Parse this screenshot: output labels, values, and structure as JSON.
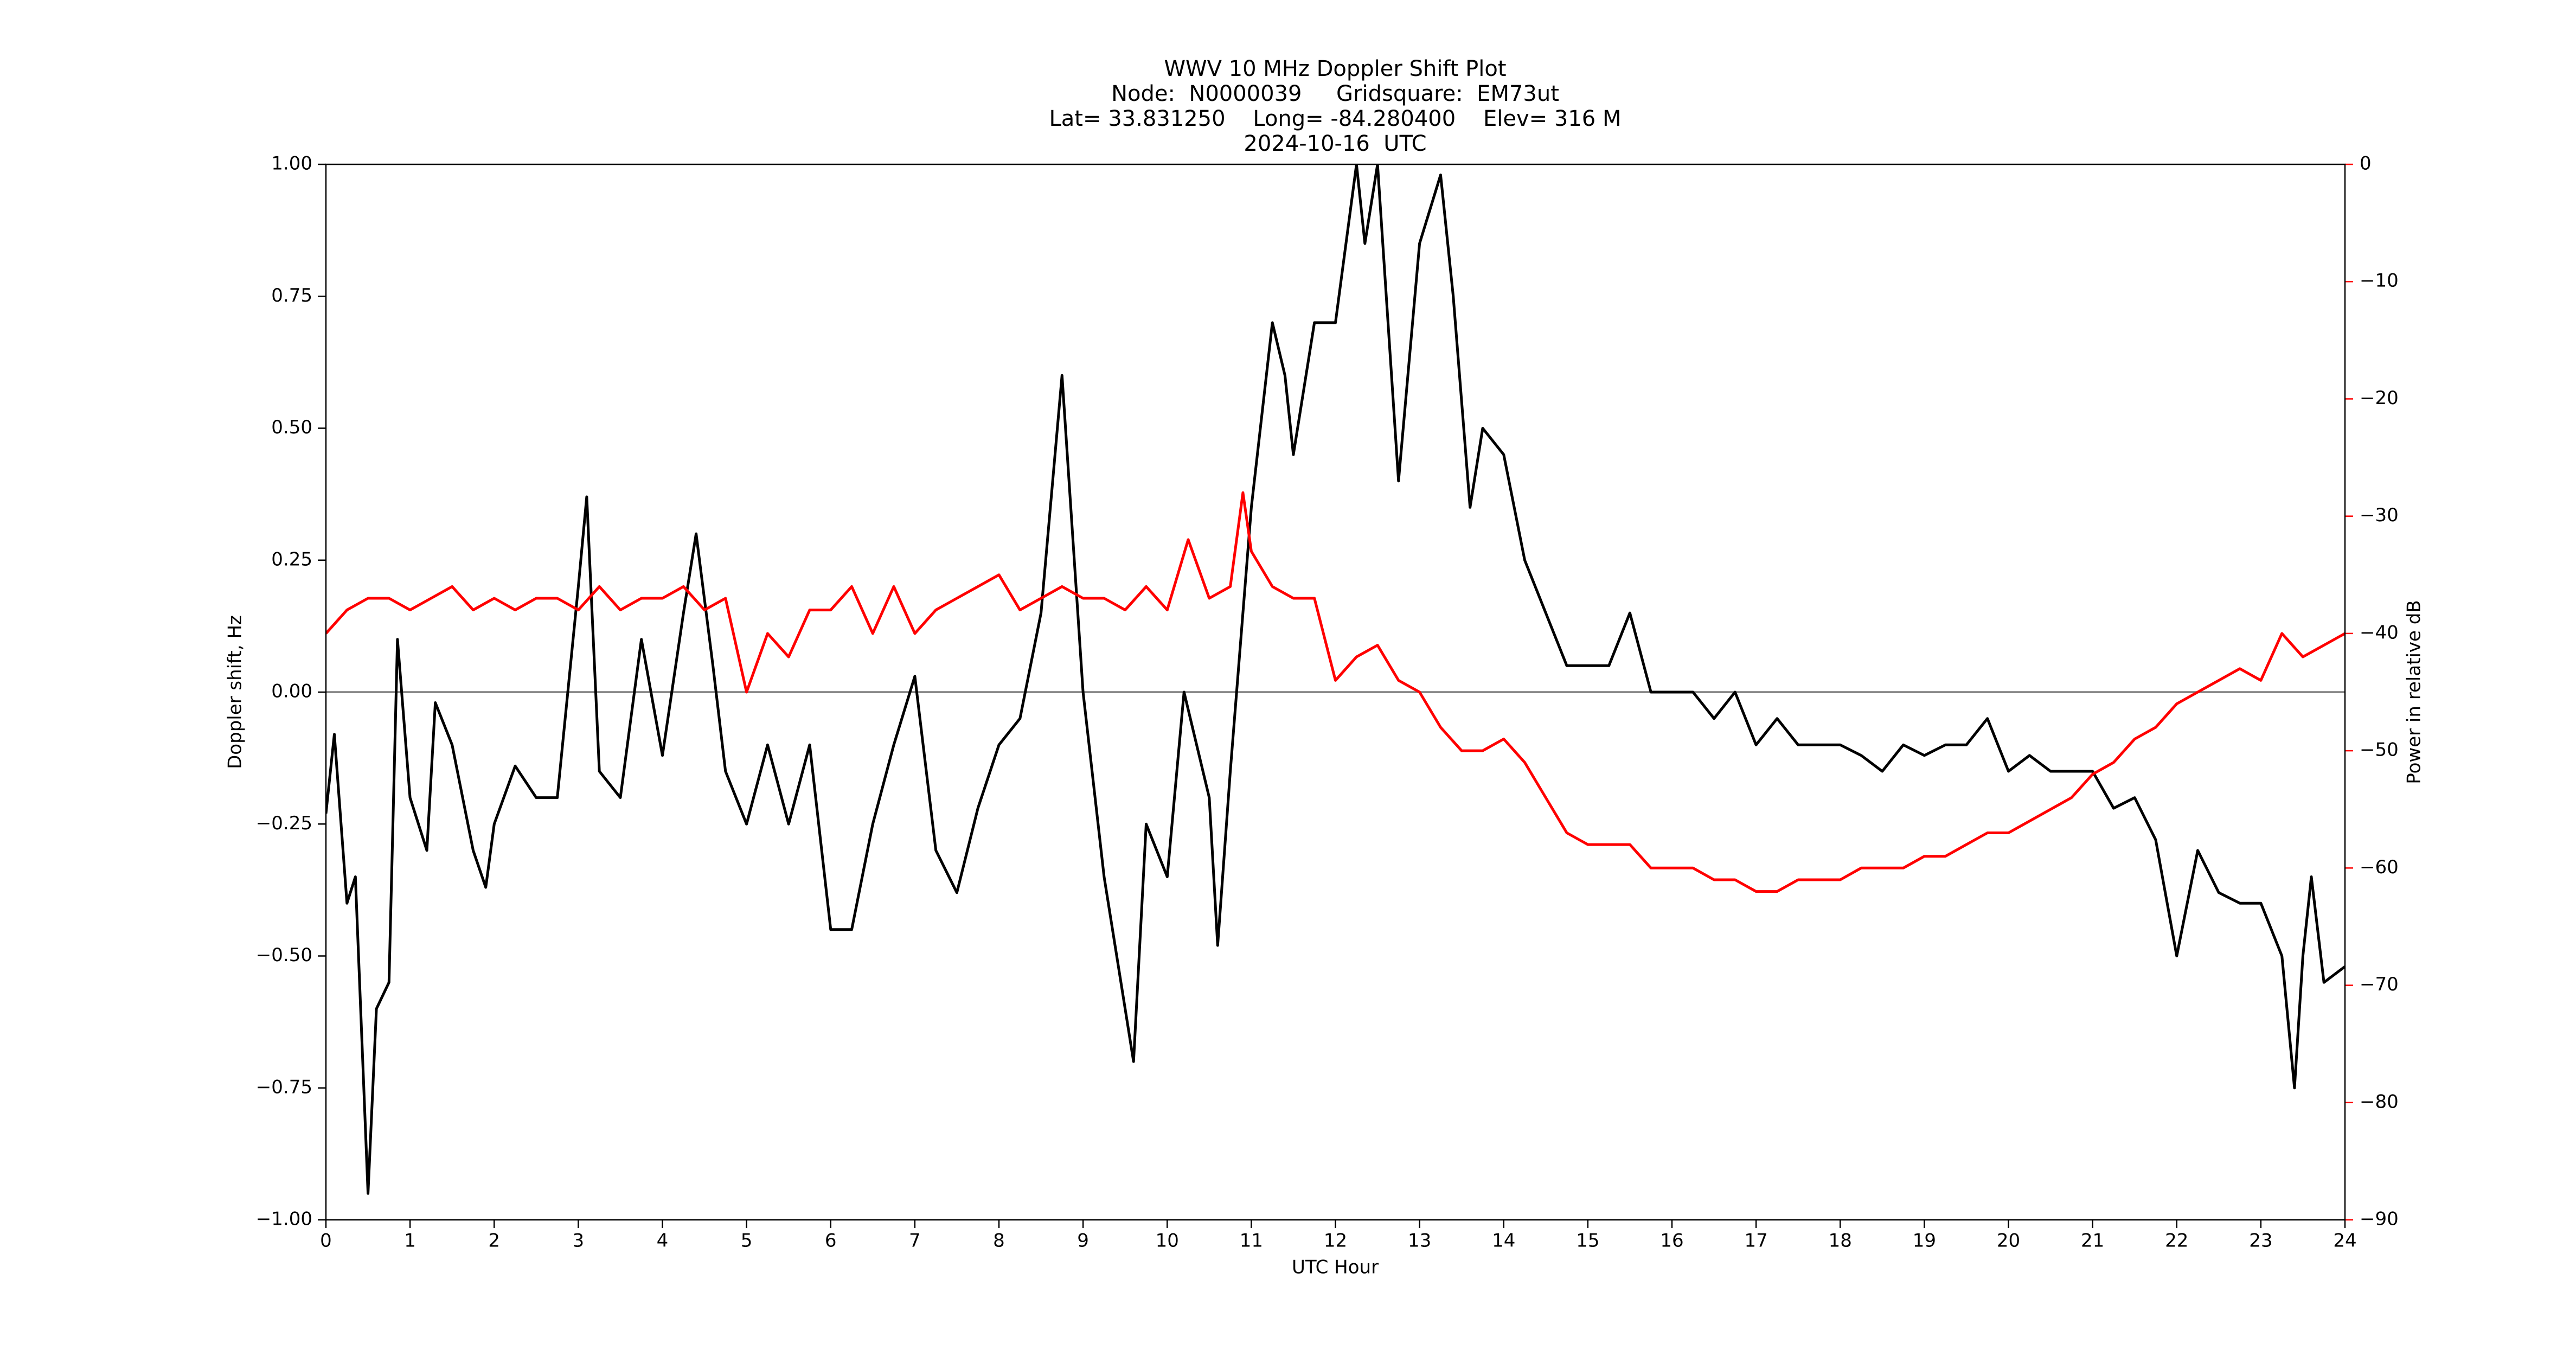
{
  "chart_data": {
    "type": "line",
    "title": [
      "WWV 10 MHz Doppler Shift Plot",
      "Node:  N0000039     Gridsquare:  EM73ut",
      "Lat= 33.831250    Long= -84.280400    Elev= 316 M",
      "2024-10-16  UTC"
    ],
    "xlabel": "UTC Hour",
    "ylabel": "Doppler shift, Hz",
    "y2label": "Power in relative dB",
    "xlim": [
      0,
      24
    ],
    "ylim": [
      -1,
      1
    ],
    "y2lim": [
      -90,
      0
    ],
    "xticks": [
      0,
      1,
      2,
      3,
      4,
      5,
      6,
      7,
      8,
      9,
      10,
      11,
      12,
      13,
      14,
      15,
      16,
      17,
      18,
      19,
      20,
      21,
      22,
      23,
      24
    ],
    "yticks": [
      {
        "value": -1,
        "label": "−1.00"
      },
      {
        "value": -0.75,
        "label": "−0.75"
      },
      {
        "value": -0.5,
        "label": "−0.50"
      },
      {
        "value": -0.25,
        "label": "−0.25"
      },
      {
        "value": 0,
        "label": "0.00"
      },
      {
        "value": 0.25,
        "label": "0.25"
      },
      {
        "value": 0.5,
        "label": "0.50"
      },
      {
        "value": 0.75,
        "label": "0.75"
      },
      {
        "value": 1,
        "label": "1.00"
      }
    ],
    "y2ticks": [
      {
        "value": -90,
        "label": "−90"
      },
      {
        "value": -80,
        "label": "−80"
      },
      {
        "value": -70,
        "label": "−70"
      },
      {
        "value": -60,
        "label": "−60"
      },
      {
        "value": -50,
        "label": "−50"
      },
      {
        "value": -40,
        "label": "−40"
      },
      {
        "value": -30,
        "label": "−30"
      },
      {
        "value": -20,
        "label": "−20"
      },
      {
        "value": -10,
        "label": "−10"
      },
      0
    ],
    "y2color": "#ff0000",
    "hline": 0,
    "hline_color": "#808080",
    "series": [
      {
        "color": "#000000",
        "axis": "y",
        "x": [
          0,
          0.1,
          0.25,
          0.35,
          0.5,
          0.6,
          0.75,
          0.85,
          1.0,
          1.2,
          1.3,
          1.5,
          1.75,
          1.9,
          2.0,
          2.25,
          2.5,
          2.75,
          3.0,
          3.1,
          3.25,
          3.5,
          3.75,
          4.0,
          4.25,
          4.4,
          4.6,
          4.75,
          5.0,
          5.25,
          5.5,
          5.75,
          6.0,
          6.25,
          6.5,
          6.75,
          7.0,
          7.25,
          7.5,
          7.75,
          8.0,
          8.25,
          8.5,
          8.75,
          9.0,
          9.25,
          9.5,
          9.6,
          9.75,
          10.0,
          10.2,
          10.5,
          10.6,
          10.75,
          11.0,
          11.25,
          11.4,
          11.5,
          11.75,
          12.0,
          12.25,
          12.35,
          12.5,
          12.75,
          13.0,
          13.25,
          13.4,
          13.6,
          13.75,
          14.0,
          14.25,
          14.5,
          14.75,
          15.0,
          15.25,
          15.5,
          15.75,
          16.0,
          16.25,
          16.5,
          16.75,
          17.0,
          17.25,
          17.5,
          17.75,
          18.0,
          18.25,
          18.5,
          18.75,
          19.0,
          19.25,
          19.5,
          19.75,
          20.0,
          20.25,
          20.5,
          20.75,
          21.0,
          21.25,
          21.5,
          21.75,
          22.0,
          22.25,
          22.5,
          22.75,
          23.0,
          23.25,
          23.4,
          23.5,
          23.6,
          23.75,
          24.0
        ],
        "values": [
          -0.23,
          -0.08,
          -0.4,
          -0.35,
          -0.95,
          -0.6,
          -0.55,
          0.1,
          -0.2,
          -0.3,
          -0.02,
          -0.1,
          -0.3,
          -0.37,
          -0.25,
          -0.14,
          -0.2,
          -0.2,
          0.2,
          0.37,
          -0.15,
          -0.2,
          0.1,
          -0.12,
          0.15,
          0.3,
          0.05,
          -0.15,
          -0.25,
          -0.1,
          -0.25,
          -0.1,
          -0.45,
          -0.45,
          -0.25,
          -0.1,
          0.03,
          -0.3,
          -0.38,
          -0.22,
          -0.1,
          -0.05,
          0.15,
          0.6,
          0.0,
          -0.35,
          -0.6,
          -0.7,
          -0.25,
          -0.35,
          0.0,
          -0.2,
          -0.48,
          -0.15,
          0.35,
          0.7,
          0.6,
          0.45,
          0.7,
          0.7,
          1.0,
          0.85,
          1.0,
          0.4,
          0.85,
          0.98,
          0.75,
          0.35,
          0.5,
          0.45,
          0.25,
          0.15,
          0.05,
          0.05,
          0.05,
          0.15,
          0.0,
          0.0,
          0.0,
          -0.05,
          0.0,
          -0.1,
          -0.05,
          -0.1,
          -0.1,
          -0.1,
          -0.12,
          -0.15,
          -0.1,
          -0.12,
          -0.1,
          -0.1,
          -0.05,
          -0.15,
          -0.12,
          -0.15,
          -0.15,
          -0.15,
          -0.22,
          -0.2,
          -0.28,
          -0.5,
          -0.3,
          -0.38,
          -0.4,
          -0.4,
          -0.5,
          -0.75,
          -0.5,
          -0.35,
          -0.55,
          -0.52
        ]
      },
      {
        "color": "#ff0000",
        "axis": "y2",
        "x": [
          0,
          0.25,
          0.5,
          0.75,
          1.0,
          1.25,
          1.5,
          1.75,
          2.0,
          2.25,
          2.5,
          2.75,
          3.0,
          3.25,
          3.5,
          3.75,
          4.0,
          4.25,
          4.5,
          4.75,
          5.0,
          5.25,
          5.5,
          5.75,
          6.0,
          6.25,
          6.5,
          6.75,
          7.0,
          7.25,
          7.5,
          7.75,
          8.0,
          8.25,
          8.5,
          8.75,
          9.0,
          9.25,
          9.5,
          9.75,
          10.0,
          10.25,
          10.5,
          10.75,
          10.9,
          11.0,
          11.25,
          11.5,
          11.75,
          12.0,
          12.25,
          12.5,
          12.75,
          13.0,
          13.25,
          13.5,
          13.75,
          14.0,
          14.25,
          14.5,
          14.75,
          15.0,
          15.25,
          15.5,
          15.75,
          16.0,
          16.25,
          16.5,
          16.75,
          17.0,
          17.25,
          17.5,
          17.75,
          18.0,
          18.25,
          18.5,
          18.75,
          19.0,
          19.25,
          19.5,
          19.75,
          20.0,
          20.25,
          20.5,
          20.75,
          21.0,
          21.25,
          21.5,
          21.75,
          22.0,
          22.25,
          22.5,
          22.75,
          23.0,
          23.25,
          23.5,
          23.75,
          24.0
        ],
        "values": [
          -40,
          -38,
          -37,
          -37,
          -38,
          -37,
          -36,
          -38,
          -37,
          -38,
          -37,
          -37,
          -38,
          -36,
          -38,
          -37,
          -37,
          -36,
          -38,
          -37,
          -45,
          -40,
          -42,
          -38,
          -38,
          -36,
          -40,
          -36,
          -40,
          -38,
          -37,
          -36,
          -35,
          -38,
          -37,
          -36,
          -37,
          -37,
          -38,
          -36,
          -38,
          -32,
          -37,
          -36,
          -28,
          -33,
          -36,
          -37,
          -37,
          -44,
          -42,
          -41,
          -44,
          -45,
          -48,
          -50,
          -50,
          -49,
          -51,
          -54,
          -57,
          -58,
          -58,
          -58,
          -60,
          -60,
          -60,
          -61,
          -61,
          -62,
          -62,
          -61,
          -61,
          -61,
          -60,
          -60,
          -60,
          -59,
          -59,
          -58,
          -57,
          -57,
          -56,
          -55,
          -54,
          -52,
          -51,
          -49,
          -48,
          -46,
          -45,
          -44,
          -43,
          -44,
          -40,
          -42,
          -41,
          -40
        ]
      }
    ]
  }
}
